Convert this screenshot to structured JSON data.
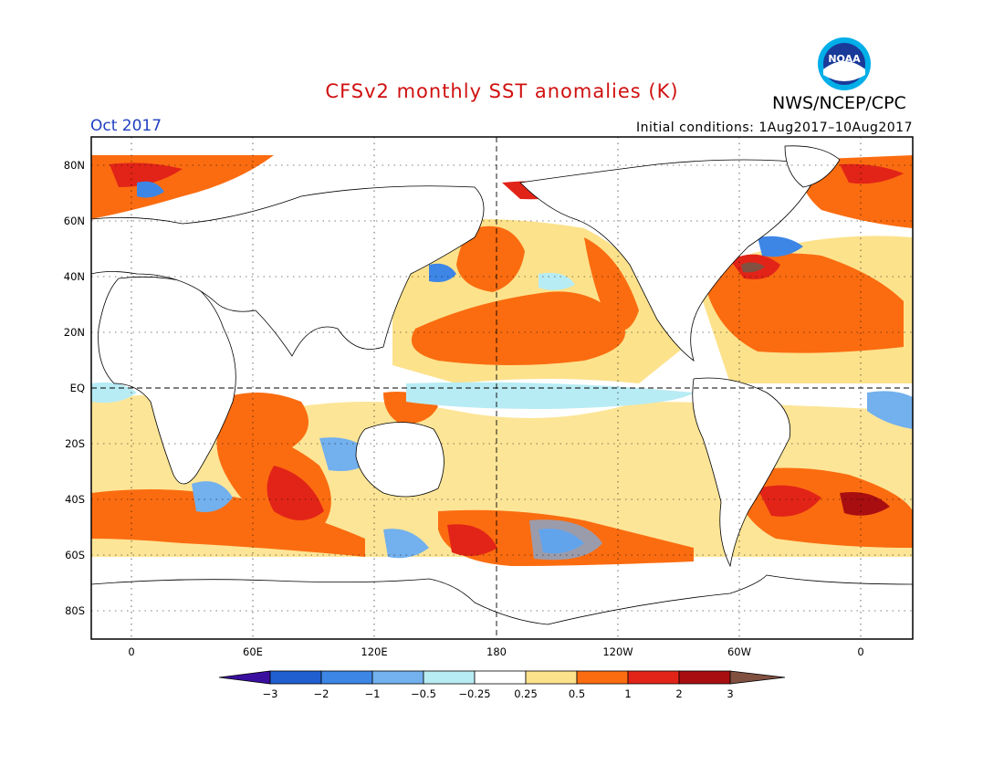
{
  "header": {
    "title": "CFSv2 monthly SST anomalies (K)",
    "agency": "NWS/NCEP/CPC",
    "month": "Oct 2017",
    "initial_conditions": "Initial conditions: 1Aug2017–10Aug2017",
    "logo_text": "NOAA"
  },
  "map": {
    "lat_labels": [
      "80N",
      "60N",
      "40N",
      "20N",
      "EQ",
      "20S",
      "40S",
      "60S",
      "80S"
    ],
    "lon_labels": [
      "0",
      "60E",
      "120E",
      "180",
      "120W",
      "60W",
      "0"
    ]
  },
  "colorbar": {
    "labels": [
      "−3",
      "−2",
      "−1",
      "−0.5",
      "−0.25",
      "0.25",
      "0.5",
      "1",
      "2",
      "3"
    ],
    "colors": [
      "#3a0fa0",
      "#1f5fd0",
      "#3d86e6",
      "#72b0ee",
      "#b8ecf4",
      "#ffffff",
      "#fde28c",
      "#fb6c10",
      "#e22418",
      "#a80e10",
      "#805040"
    ]
  },
  "palette": {
    "land": "#ffffff",
    "pos_weak": "#fde28c",
    "pos_mod": "#fb6c10",
    "pos_strong": "#e22418",
    "pos_vstrong": "#a80e10",
    "pos_extreme": "#805040",
    "neg_weak": "#b8ecf4",
    "neg_mod": "#72b0ee",
    "neg_strong": "#3d86e6",
    "neg_vstrong": "#1f5fd0",
    "neg_extreme": "#3a0fa0"
  }
}
